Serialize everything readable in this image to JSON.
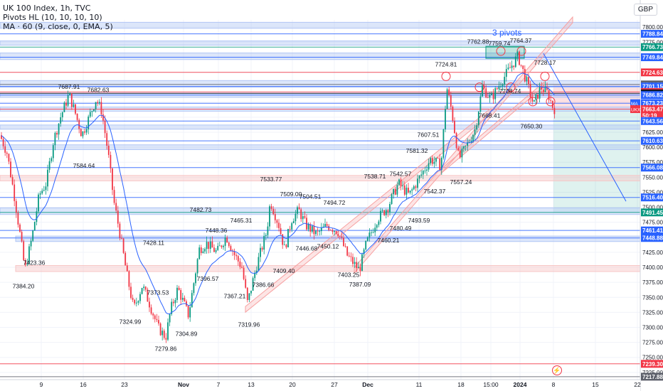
{
  "header": {
    "title": "UK 100 Index, 1h, TVC",
    "indicator_1": "Pivots HL (10, 10, 10, 10)",
    "indicator_2": "MA · 60 (9, close, 0, EMA, 5)",
    "currency": "GBP"
  },
  "chart_data": {
    "type": "candlestick",
    "ylim": [
      7213,
      7812
    ],
    "grid": true,
    "x_ticks": [
      "9",
      "16",
      "23",
      "Nov",
      "7",
      "13",
      "20",
      "27",
      "Dec",
      "11",
      "18",
      "15:00",
      "2024",
      "8",
      "15",
      "22"
    ],
    "y_ticks": [
      7800.0,
      7775.0,
      7750.0,
      7725.0,
      7700.0,
      7675.0,
      7650.0,
      7625.0,
      7600.0,
      7575.0,
      7550.0,
      7525.0,
      7500.0,
      7475.0,
      7450.0,
      7425.0,
      7400.0,
      7375.0,
      7350.0,
      7325.0,
      7300.0,
      7275.0,
      7250.0,
      7225.0
    ],
    "path": [
      [
        0,
        7620
      ],
      [
        10,
        7590
      ],
      [
        20,
        7520
      ],
      [
        30,
        7440
      ],
      [
        35,
        7395
      ],
      [
        45,
        7450
      ],
      [
        55,
        7520
      ],
      [
        65,
        7540
      ],
      [
        75,
        7610
      ],
      [
        85,
        7650
      ],
      [
        97,
        7688
      ],
      [
        105,
        7660
      ],
      [
        115,
        7620
      ],
      [
        122,
        7640
      ],
      [
        135,
        7680
      ],
      [
        143,
        7660
      ],
      [
        152,
        7590
      ],
      [
        160,
        7510
      ],
      [
        168,
        7460
      ],
      [
        178,
        7390
      ],
      [
        188,
        7330
      ],
      [
        200,
        7370
      ],
      [
        210,
        7340
      ],
      [
        222,
        7300
      ],
      [
        233,
        7283
      ],
      [
        240,
        7330
      ],
      [
        250,
        7365
      ],
      [
        265,
        7320
      ],
      [
        280,
        7430
      ],
      [
        290,
        7440
      ],
      [
        305,
        7425
      ],
      [
        318,
        7452
      ],
      [
        330,
        7420
      ],
      [
        340,
        7400
      ],
      [
        348,
        7340
      ],
      [
        360,
        7400
      ],
      [
        375,
        7460
      ],
      [
        380,
        7510
      ],
      [
        392,
        7470
      ],
      [
        400,
        7430
      ],
      [
        410,
        7480
      ],
      [
        420,
        7495
      ],
      [
        430,
        7470
      ],
      [
        445,
        7455
      ],
      [
        460,
        7470
      ],
      [
        475,
        7460
      ],
      [
        488,
        7420
      ],
      [
        505,
        7395
      ],
      [
        515,
        7440
      ],
      [
        530,
        7480
      ],
      [
        545,
        7500
      ],
      [
        560,
        7540
      ],
      [
        575,
        7520
      ],
      [
        590,
        7550
      ],
      [
        605,
        7580
      ],
      [
        620,
        7570
      ],
      [
        628,
        7700
      ],
      [
        635,
        7660
      ],
      [
        645,
        7580
      ],
      [
        655,
        7600
      ],
      [
        668,
        7630
      ],
      [
        678,
        7700
      ],
      [
        690,
        7680
      ],
      [
        705,
        7710
      ],
      [
        716,
        7730
      ],
      [
        728,
        7752
      ],
      [
        740,
        7710
      ],
      [
        750,
        7670
      ],
      [
        760,
        7700
      ],
      [
        770,
        7690
      ],
      [
        778,
        7664
      ]
    ],
    "price_labels": [
      {
        "text": "7788.84",
        "value": 7788.84,
        "color": "#2962ff"
      },
      {
        "text": "7766.73",
        "value": 7766.73,
        "color": "#089981"
      },
      {
        "text": "7749.84",
        "value": 7749.84,
        "color": "#2962ff"
      },
      {
        "text": "7724.63",
        "value": 7724.63,
        "color": "#f23645"
      },
      {
        "text": "7704.53",
        "value": 7704.53,
        "color": "#5d606b"
      },
      {
        "text": "7701.15",
        "value": 7701.15,
        "color": "#2962ff"
      },
      {
        "text": "7691.94",
        "value": 7691.94,
        "color": "#f23645"
      },
      {
        "text": "7689.62",
        "value": 7689.62,
        "color": "#131722"
      },
      {
        "text": "7686.82",
        "value": 7686.82,
        "color": "#2962ff"
      },
      {
        "text": "7673.23",
        "value": 7673.23,
        "color": "#2962ff"
      },
      {
        "text": "7663.47",
        "value": 7663.47,
        "color": "#f23645"
      },
      {
        "text": "50:19",
        "value": 7653,
        "color": "#f23645"
      },
      {
        "text": "7643.56",
        "value": 7643.56,
        "color": "#2962ff"
      },
      {
        "text": "7610.63",
        "value": 7610.63,
        "color": "#2962ff"
      },
      {
        "text": "7566.08",
        "value": 7566.08,
        "color": "#2962ff"
      },
      {
        "text": "7516.40",
        "value": 7516.4,
        "color": "#2962ff"
      },
      {
        "text": "7491.45",
        "value": 7491.45,
        "color": "#089981"
      },
      {
        "text": "7461.41",
        "value": 7461.41,
        "color": "#2962ff"
      },
      {
        "text": "7448.88",
        "value": 7448.88,
        "color": "#2962ff"
      },
      {
        "text": "7239.30",
        "value": 7239.3,
        "color": "#f23645"
      },
      {
        "text": "7217.88",
        "value": 7217.88,
        "color": "#5d606b"
      }
    ],
    "side_tags": [
      {
        "text": "MA",
        "value": 7673.23,
        "color": "#2962ff"
      },
      {
        "text": "UKX",
        "value": 7663.47,
        "color": "#f23645"
      }
    ],
    "pivot_labels": [
      {
        "text": "7687.91",
        "x": 97,
        "value": 7687.91,
        "pos": "above"
      },
      {
        "text": "7682.63",
        "x": 138,
        "value": 7682.63,
        "pos": "above"
      },
      {
        "text": "7584.64",
        "x": 118,
        "value": 7584.64,
        "pos": "below"
      },
      {
        "text": "7428.11",
        "x": 216,
        "value": 7428.11,
        "pos": "above"
      },
      {
        "text": "7423.36",
        "x": 48,
        "value": 7423.36,
        "pos": "below"
      },
      {
        "text": "7384.20",
        "x": 33,
        "value": 7384.2,
        "pos": "below"
      },
      {
        "text": "7373.53",
        "x": 222,
        "value": 7373.53,
        "pos": "below"
      },
      {
        "text": "7324.99",
        "x": 183,
        "value": 7324.99,
        "pos": "below"
      },
      {
        "text": "7304.89",
        "x": 262,
        "value": 7304.89,
        "pos": "below"
      },
      {
        "text": "7279.86",
        "x": 233,
        "value": 7279.86,
        "pos": "below"
      },
      {
        "text": "7482.73",
        "x": 282,
        "value": 7482.73,
        "pos": "above"
      },
      {
        "text": "7448.36",
        "x": 304,
        "value": 7448.36,
        "pos": "above"
      },
      {
        "text": "7396.57",
        "x": 292,
        "value": 7396.57,
        "pos": "below"
      },
      {
        "text": "7465.31",
        "x": 339,
        "value": 7465.31,
        "pos": "above"
      },
      {
        "text": "7367.21",
        "x": 330,
        "value": 7367.21,
        "pos": "below"
      },
      {
        "text": "7319.96",
        "x": 350,
        "value": 7319.96,
        "pos": "below"
      },
      {
        "text": "7386.66",
        "x": 370,
        "value": 7386.66,
        "pos": "below"
      },
      {
        "text": "7409.40",
        "x": 399,
        "value": 7409.4,
        "pos": "below"
      },
      {
        "text": "7533.77",
        "x": 381,
        "value": 7533.77,
        "pos": "above"
      },
      {
        "text": "7509.00",
        "x": 409,
        "value": 7509.0,
        "pos": "above"
      },
      {
        "text": "7504.51",
        "x": 436,
        "value": 7504.51,
        "pos": "above"
      },
      {
        "text": "7494.72",
        "x": 470,
        "value": 7494.72,
        "pos": "above"
      },
      {
        "text": "7446.68",
        "x": 431,
        "value": 7446.68,
        "pos": "below"
      },
      {
        "text": "7450.12",
        "x": 461,
        "value": 7450.12,
        "pos": "below"
      },
      {
        "text": "7403.25",
        "x": 490,
        "value": 7403.25,
        "pos": "below"
      },
      {
        "text": "7387.09",
        "x": 506,
        "value": 7387.09,
        "pos": "below"
      },
      {
        "text": "7538.71",
        "x": 527,
        "value": 7538.71,
        "pos": "above"
      },
      {
        "text": "7542.57",
        "x": 563,
        "value": 7542.57,
        "pos": "above"
      },
      {
        "text": "7581.32",
        "x": 586,
        "value": 7581.32,
        "pos": "above"
      },
      {
        "text": "7607.51",
        "x": 602,
        "value": 7607.51,
        "pos": "above"
      },
      {
        "text": "7480.49",
        "x": 563,
        "value": 7480.49,
        "pos": "below"
      },
      {
        "text": "7460.21",
        "x": 546,
        "value": 7460.21,
        "pos": "below"
      },
      {
        "text": "7493.59",
        "x": 589,
        "value": 7493.59,
        "pos": "below"
      },
      {
        "text": "7542.37",
        "x": 611,
        "value": 7542.37,
        "pos": "below"
      },
      {
        "text": "7557.24",
        "x": 648,
        "value": 7557.24,
        "pos": "below"
      },
      {
        "text": "7724.81",
        "x": 627,
        "value": 7724.81,
        "pos": "above"
      },
      {
        "text": "7762.88",
        "x": 672,
        "value": 7762.88,
        "pos": "above"
      },
      {
        "text": "7759.74",
        "x": 702,
        "value": 7759.74,
        "pos": "above"
      },
      {
        "text": "7764.37",
        "x": 732,
        "value": 7764.37,
        "pos": "above"
      },
      {
        "text": "7728.17",
        "x": 766,
        "value": 7728.17,
        "pos": "above"
      },
      {
        "text": "7708.74",
        "x": 717,
        "value": 7708.74,
        "pos": "below"
      },
      {
        "text": "7668.41",
        "x": 688,
        "value": 7668.41,
        "pos": "below"
      },
      {
        "text": "7650.30",
        "x": 747,
        "value": 7650.3,
        "pos": "below"
      }
    ],
    "annotation": "3 pivots",
    "colors": {
      "up": "#089981",
      "down": "#f23645",
      "zone_blue": "#b2c7f5",
      "zone_red": "#f7c6c6",
      "line_blue": "#2962ff"
    }
  }
}
